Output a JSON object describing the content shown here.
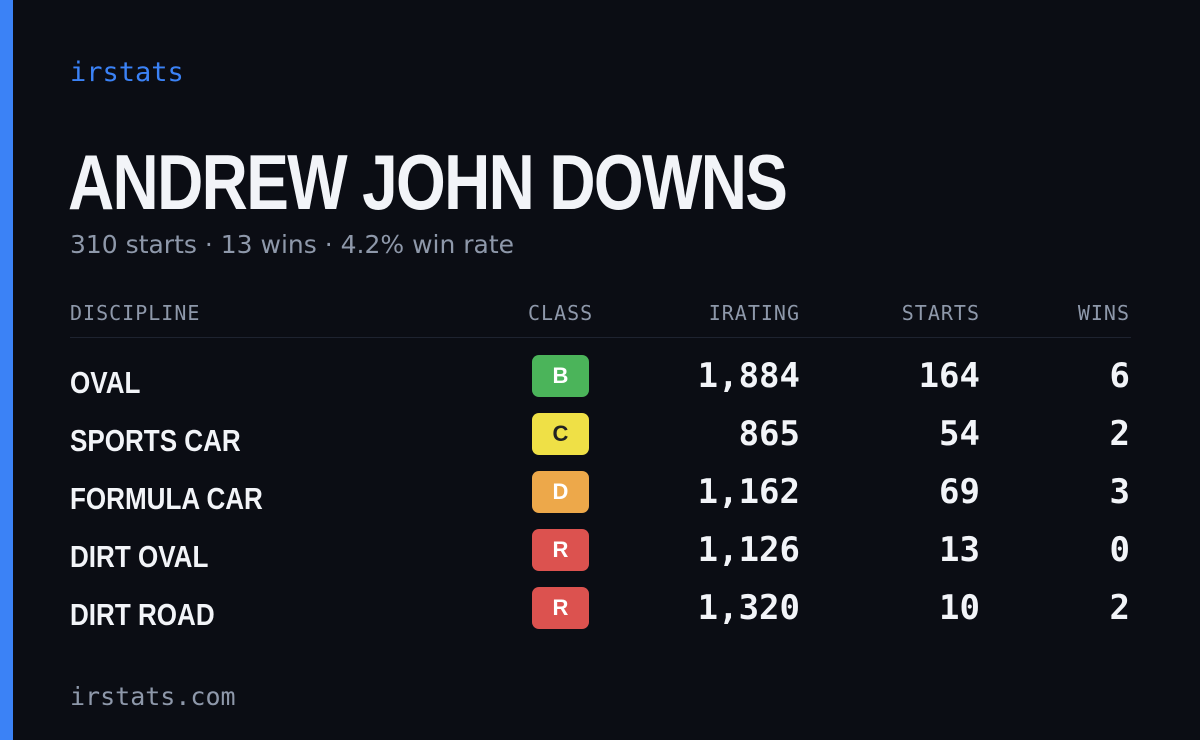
{
  "brand": "irstats",
  "driver": {
    "name": "ANDREW JOHN DOWNS",
    "summary": "310 starts · 13 wins · 4.2% win rate"
  },
  "colors": {
    "accent": "#3b82f6",
    "background": "#0b0d14"
  },
  "table": {
    "headers": {
      "discipline": "DISCIPLINE",
      "class": "CLASS",
      "irating": "IRATING",
      "starts": "STARTS",
      "wins": "WINS"
    },
    "rows": [
      {
        "discipline": "OVAL",
        "class": "B",
        "class_color": "#4bb45a",
        "class_text_color": "#ffffff",
        "irating": "1,884",
        "starts": "164",
        "wins": "6"
      },
      {
        "discipline": "SPORTS CAR",
        "class": "C",
        "class_color": "#efe046",
        "class_text_color": "#222222",
        "irating": "865",
        "starts": "54",
        "wins": "2"
      },
      {
        "discipline": "FORMULA CAR",
        "class": "D",
        "class_color": "#eda84a",
        "class_text_color": "#ffffff",
        "irating": "1,162",
        "starts": "69",
        "wins": "3"
      },
      {
        "discipline": "DIRT OVAL",
        "class": "R",
        "class_color": "#dc524f",
        "class_text_color": "#ffffff",
        "irating": "1,126",
        "starts": "13",
        "wins": "0"
      },
      {
        "discipline": "DIRT ROAD",
        "class": "R",
        "class_color": "#dc524f",
        "class_text_color": "#ffffff",
        "irating": "1,320",
        "starts": "10",
        "wins": "2"
      }
    ]
  },
  "footer": "irstats.com"
}
